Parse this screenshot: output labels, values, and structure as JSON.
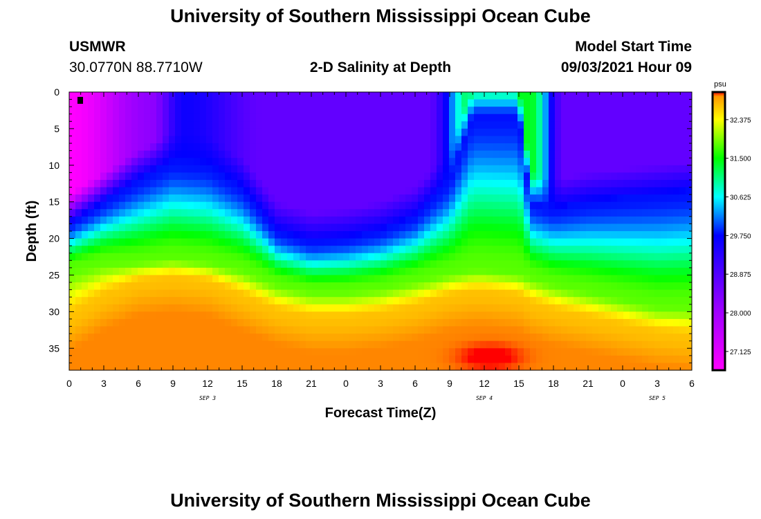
{
  "header": {
    "title_top": "University of Southern Mississippi Ocean Cube",
    "title_bottom": "University of Southern Mississippi Ocean Cube",
    "station": "USMWR",
    "coords": "30.0770N  88.7710W",
    "subtitle": "2-D Salinity at Depth",
    "model_label": "Model Start Time",
    "model_time": "09/03/2021 Hour 09"
  },
  "chart_data": {
    "type": "heatmap",
    "title": "2-D Salinity at Depth",
    "xlabel": "Forecast Time(Z)",
    "ylabel": "Depth (ft)",
    "units": "psu",
    "xlim": [
      0,
      54
    ],
    "ylim": [
      38,
      0
    ],
    "x_tick_labels": [
      "0",
      "3",
      "6",
      "9",
      "12",
      "15",
      "18",
      "21",
      "0",
      "3",
      "6",
      "9",
      "12",
      "15",
      "18",
      "21",
      "0",
      "3",
      "6"
    ],
    "y_tick_values": [
      0,
      5,
      10,
      15,
      20,
      25,
      30,
      35
    ],
    "y_tick_labels": [
      "0",
      "5",
      "10",
      "15",
      "20",
      "25",
      "30",
      "35"
    ],
    "date_labels": [
      {
        "text": "SEP 3",
        "x": 12
      },
      {
        "text": "SEP 4",
        "x": 36
      },
      {
        "text": "SEP 5",
        "x": 51
      }
    ],
    "colorbar": {
      "label": "psu",
      "range": [
        26.7,
        33.0
      ],
      "tick_values": [
        27.125,
        28.0,
        28.875,
        29.75,
        30.625,
        31.5,
        32.375
      ],
      "tick_labels": [
        "27.125",
        "28.000",
        "28.875",
        "29.750",
        "30.625",
        "31.500",
        "32.375"
      ],
      "stops": [
        {
          "v": 26.7,
          "c": "#ff00ff"
        },
        {
          "v": 28.1,
          "c": "#9a00ff"
        },
        {
          "v": 29.75,
          "c": "#0000ff"
        },
        {
          "v": 30.625,
          "c": "#00ffff"
        },
        {
          "v": 31.5,
          "c": "#00ff00"
        },
        {
          "v": 32.375,
          "c": "#ffff00"
        },
        {
          "v": 32.9,
          "c": "#ff9900"
        },
        {
          "v": 33.3,
          "c": "#ff0000"
        }
      ]
    },
    "grid": false
  }
}
